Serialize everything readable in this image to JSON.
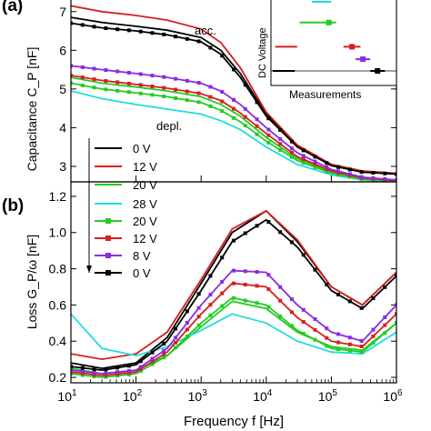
{
  "figure": {
    "x_axis_label": "Frequency f [Hz]",
    "x_tick_labels": [
      "10^1",
      "10^2",
      "10^3",
      "10^4",
      "10^5",
      "10^6"
    ]
  },
  "chart_data": [
    {
      "panel": "a",
      "panel_label": "(a)",
      "type": "line",
      "xscale": "log",
      "xlim": [
        10,
        1000000
      ],
      "ylim": [
        2.6,
        7.3
      ],
      "ylabel": "Capacitance C_P [nF]",
      "y_ticks": [
        3,
        4,
        5,
        6,
        7
      ],
      "annotations": [
        "acc.",
        "depl."
      ],
      "legend": [
        "0 V",
        "12 V",
        "20 V"
      ],
      "series": [
        {
          "name": "0 V",
          "color": "#000000",
          "markers": false,
          "x": [
            10,
            30,
            100,
            300,
            1000,
            2000,
            4000,
            10000,
            30000,
            100000,
            300000,
            1000000
          ],
          "y": [
            6.85,
            6.72,
            6.62,
            6.52,
            6.33,
            6.0,
            5.4,
            4.35,
            3.55,
            3.05,
            2.88,
            2.82
          ]
        },
        {
          "name": "12 V",
          "color": "#d62020",
          "markers": false,
          "x": [
            10,
            30,
            100,
            300,
            1000,
            2000,
            4000,
            10000,
            30000,
            100000,
            300000,
            1000000
          ],
          "y": [
            7.15,
            7.0,
            6.9,
            6.78,
            6.55,
            6.2,
            5.55,
            4.4,
            3.55,
            3.05,
            2.88,
            2.82
          ]
        },
        {
          "name": "20 V",
          "color": "#22cc22",
          "markers": false,
          "x": [
            10,
            30,
            100,
            300,
            1000,
            2000,
            4000,
            10000,
            30000,
            100000,
            300000,
            1000000
          ],
          "y": [
            5.3,
            5.15,
            5.05,
            4.95,
            4.8,
            4.6,
            4.3,
            3.75,
            3.2,
            2.85,
            2.68,
            2.62
          ]
        },
        {
          "name": "28 V",
          "color": "#22dddd",
          "markers": false,
          "x": [
            10,
            30,
            100,
            300,
            1000,
            2000,
            4000,
            10000,
            30000,
            100000,
            300000,
            1000000
          ],
          "y": [
            4.95,
            4.75,
            4.6,
            4.48,
            4.35,
            4.18,
            3.95,
            3.5,
            3.05,
            2.78,
            2.65,
            2.6
          ]
        },
        {
          "name": "20 V (meas.)",
          "color": "#22cc22",
          "markers": true,
          "x": [
            10,
            30,
            100,
            300,
            1000,
            2000,
            4000,
            10000,
            30000,
            100000,
            300000,
            1000000
          ],
          "y": [
            5.15,
            5.0,
            4.9,
            4.8,
            4.65,
            4.45,
            4.15,
            3.65,
            3.15,
            2.82,
            2.67,
            2.62
          ]
        },
        {
          "name": "12 V (meas.)",
          "color": "#d62020",
          "markers": true,
          "x": [
            10,
            30,
            100,
            300,
            1000,
            2000,
            4000,
            10000,
            30000,
            100000,
            300000,
            1000000
          ],
          "y": [
            5.35,
            5.22,
            5.12,
            5.02,
            4.88,
            4.7,
            4.38,
            3.85,
            3.25,
            2.88,
            2.7,
            2.63
          ]
        },
        {
          "name": "8 V (meas.)",
          "color": "#8a2be2",
          "markers": true,
          "x": [
            10,
            30,
            100,
            300,
            1000,
            2000,
            4000,
            10000,
            30000,
            100000,
            300000,
            1000000
          ],
          "y": [
            5.6,
            5.5,
            5.4,
            5.3,
            5.15,
            4.95,
            4.6,
            4.0,
            3.35,
            2.92,
            2.72,
            2.65
          ]
        },
        {
          "name": "0 V (meas.)",
          "color": "#000000",
          "markers": true,
          "x": [
            10,
            30,
            100,
            300,
            1000,
            2000,
            4000,
            10000,
            30000,
            100000,
            300000,
            1000000
          ],
          "y": [
            6.7,
            6.58,
            6.5,
            6.4,
            6.22,
            5.9,
            5.3,
            4.3,
            3.5,
            3.02,
            2.85,
            2.8
          ]
        }
      ]
    },
    {
      "panel": "b",
      "panel_label": "(b)",
      "type": "line",
      "xscale": "log",
      "xlim": [
        10,
        1000000
      ],
      "ylim": [
        0.17,
        1.28
      ],
      "ylabel": "Loss G_P/ω [nF]",
      "y_ticks": [
        0.2,
        0.4,
        0.6,
        0.8,
        1.0,
        1.2
      ],
      "legend": [
        "28 V",
        "20 V",
        "12 V",
        "8 V",
        "0 V"
      ],
      "series": [
        {
          "name": "0 V",
          "color": "#000000",
          "markers": false,
          "x": [
            10,
            30,
            100,
            300,
            1000,
            3000,
            10000,
            30000,
            100000,
            300000,
            1000000
          ],
          "y": [
            0.28,
            0.25,
            0.28,
            0.42,
            0.72,
            1.0,
            1.12,
            0.95,
            0.7,
            0.6,
            0.78
          ]
        },
        {
          "name": "12 V",
          "color": "#d62020",
          "markers": false,
          "x": [
            10,
            30,
            100,
            300,
            1000,
            3000,
            10000,
            30000,
            100000,
            300000,
            1000000
          ],
          "y": [
            0.33,
            0.3,
            0.33,
            0.45,
            0.74,
            1.02,
            1.12,
            0.96,
            0.7,
            0.6,
            0.78
          ]
        },
        {
          "name": "20 V",
          "color": "#22cc22",
          "markers": false,
          "x": [
            10,
            30,
            100,
            300,
            1000,
            3000,
            10000,
            30000,
            100000,
            300000,
            1000000
          ],
          "y": [
            0.25,
            0.22,
            0.24,
            0.32,
            0.48,
            0.62,
            0.58,
            0.45,
            0.37,
            0.35,
            0.5
          ]
        },
        {
          "name": "28 V",
          "color": "#22dddd",
          "markers": false,
          "x": [
            10,
            30,
            100,
            300,
            1000,
            3000,
            10000,
            30000,
            100000,
            300000,
            1000000
          ],
          "y": [
            0.55,
            0.36,
            0.32,
            0.37,
            0.46,
            0.55,
            0.5,
            0.4,
            0.34,
            0.33,
            0.45
          ]
        },
        {
          "name": "20 V (meas.)",
          "color": "#22cc22",
          "markers": true,
          "x": [
            10,
            30,
            100,
            300,
            1000,
            3000,
            10000,
            30000,
            100000,
            300000,
            1000000
          ],
          "y": [
            0.22,
            0.2,
            0.22,
            0.32,
            0.5,
            0.64,
            0.6,
            0.46,
            0.36,
            0.34,
            0.5
          ]
        },
        {
          "name": "12 V (meas.)",
          "color": "#d62020",
          "markers": true,
          "x": [
            10,
            30,
            100,
            300,
            1000,
            3000,
            10000,
            30000,
            100000,
            300000,
            1000000
          ],
          "y": [
            0.23,
            0.21,
            0.23,
            0.34,
            0.55,
            0.72,
            0.7,
            0.53,
            0.4,
            0.37,
            0.55
          ]
        },
        {
          "name": "8 V (meas.)",
          "color": "#8a2be2",
          "markers": true,
          "x": [
            10,
            30,
            100,
            300,
            1000,
            3000,
            10000,
            30000,
            100000,
            300000,
            1000000
          ],
          "y": [
            0.24,
            0.22,
            0.24,
            0.36,
            0.6,
            0.79,
            0.78,
            0.6,
            0.45,
            0.4,
            0.6
          ]
        },
        {
          "name": "0 V (meas.)",
          "color": "#000000",
          "markers": true,
          "x": [
            10,
            30,
            100,
            300,
            1000,
            3000,
            10000,
            30000,
            100000,
            300000,
            1000000
          ],
          "y": [
            0.26,
            0.24,
            0.27,
            0.4,
            0.68,
            0.95,
            1.07,
            0.92,
            0.68,
            0.58,
            0.76
          ]
        }
      ]
    },
    {
      "panel": "inset",
      "type": "scatter",
      "xlabel": "Measurements",
      "ylabel": "DC Voltage",
      "segments": [
        {
          "color": "#000000",
          "level": 0.0,
          "x": [
            0.0,
            0.18
          ]
        },
        {
          "color": "#000000",
          "level": 0.0,
          "x": [
            0.8,
            0.92
          ],
          "marker": true
        },
        {
          "color": "#d62020",
          "level": 0.35,
          "x": [
            0.02,
            0.2
          ]
        },
        {
          "color": "#d62020",
          "level": 0.35,
          "x": [
            0.58,
            0.72
          ],
          "marker": true
        },
        {
          "color": "#22cc22",
          "level": 0.7,
          "x": [
            0.22,
            0.4
          ]
        },
        {
          "color": "#22cc22",
          "level": 0.7,
          "x": [
            0.4,
            0.52
          ],
          "marker": true
        },
        {
          "color": "#22dddd",
          "level": 1.0,
          "x": [
            0.32,
            0.48
          ]
        },
        {
          "color": "#8a2be2",
          "level": 0.17,
          "x": [
            0.68,
            0.8
          ],
          "marker": true
        }
      ]
    }
  ]
}
